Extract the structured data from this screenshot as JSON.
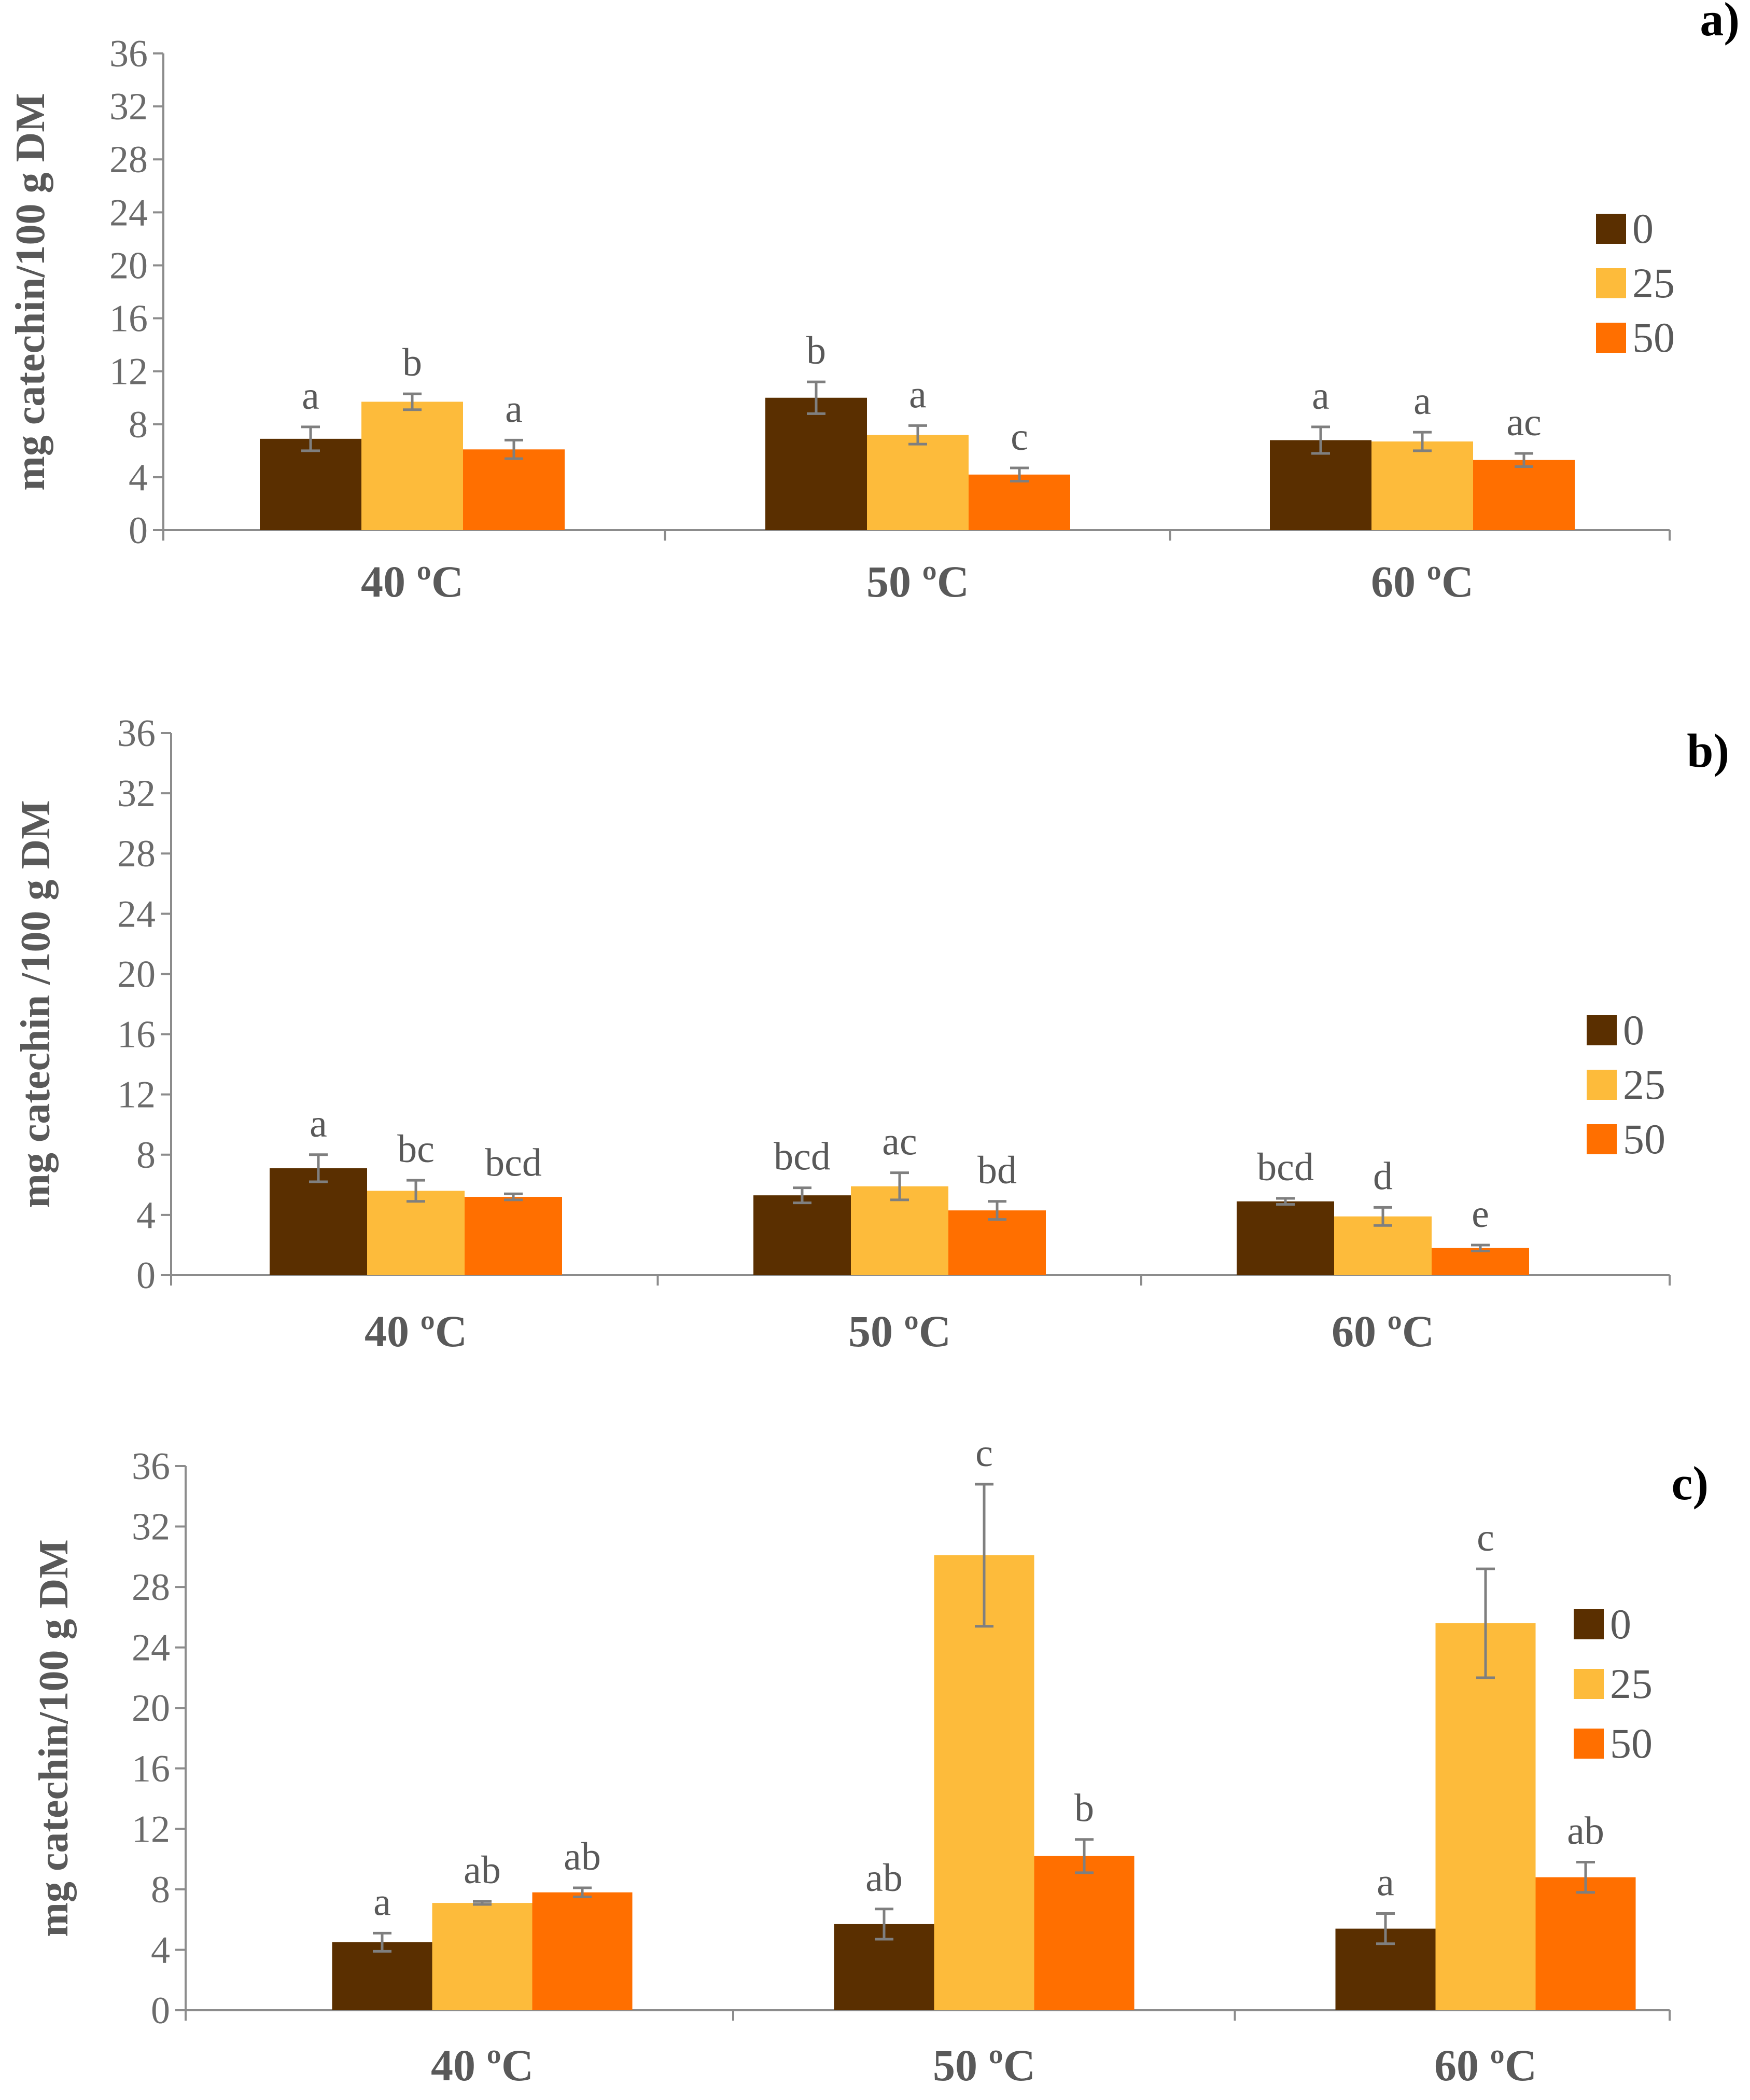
{
  "chart_data": [
    {
      "type": "bar",
      "panel_label": "a)",
      "ylabel": "mg catechin/100 g DM",
      "categories": [
        "40 ºC",
        "50 ºC",
        "60 ºC"
      ],
      "ylim": [
        0,
        36
      ],
      "yticks": [
        0,
        4,
        8,
        12,
        16,
        20,
        24,
        28,
        32,
        36
      ],
      "legend_position": "right",
      "series": [
        {
          "name": "0",
          "color": "#5a2f00",
          "values": [
            6.9,
            10.0,
            6.8
          ],
          "errors": [
            0.9,
            1.2,
            1.0
          ],
          "labels": [
            "a",
            "b",
            "a"
          ]
        },
        {
          "name": "25",
          "color": "#fdbb3b",
          "values": [
            9.7,
            7.2,
            6.7
          ],
          "errors": [
            0.6,
            0.7,
            0.7
          ],
          "labels": [
            "b",
            "a",
            "a"
          ]
        },
        {
          "name": "50",
          "color": "#ff6f00",
          "values": [
            6.1,
            4.2,
            5.3
          ],
          "errors": [
            0.7,
            0.5,
            0.5
          ],
          "labels": [
            "a",
            "c",
            "ac"
          ]
        }
      ]
    },
    {
      "type": "bar",
      "panel_label": "b)",
      "ylabel": "mg catechin /100 g DM",
      "categories": [
        "40 ºC",
        "50 ºC",
        "60 ºC"
      ],
      "ylim": [
        0,
        36
      ],
      "yticks": [
        0,
        4,
        8,
        12,
        16,
        20,
        24,
        28,
        32,
        36
      ],
      "legend_position": "right",
      "series": [
        {
          "name": "0",
          "color": "#5a2f00",
          "values": [
            7.1,
            5.3,
            4.9
          ],
          "errors": [
            0.9,
            0.5,
            0.2
          ],
          "labels": [
            "a",
            "bcd",
            "bcd"
          ]
        },
        {
          "name": "25",
          "color": "#fdbb3b",
          "values": [
            5.6,
            5.9,
            3.9
          ],
          "errors": [
            0.7,
            0.9,
            0.6
          ],
          "labels": [
            "bc",
            "ac",
            "d"
          ]
        },
        {
          "name": "50",
          "color": "#ff6f00",
          "values": [
            5.2,
            4.3,
            1.8
          ],
          "errors": [
            0.2,
            0.6,
            0.2
          ],
          "labels": [
            "bcd",
            "bd",
            "e"
          ]
        }
      ]
    },
    {
      "type": "bar",
      "panel_label": "c)",
      "ylabel": "mg catechin/100 g DM",
      "categories": [
        "40 ºC",
        "50 ºC",
        "60 ºC"
      ],
      "ylim": [
        0,
        36
      ],
      "yticks": [
        0,
        4,
        8,
        12,
        16,
        20,
        24,
        28,
        32,
        36
      ],
      "legend_position": "right",
      "series": [
        {
          "name": "0",
          "color": "#5a2f00",
          "values": [
            4.5,
            5.7,
            5.4
          ],
          "errors": [
            0.6,
            1.0,
            1.0
          ],
          "labels": [
            "a",
            "ab",
            "a"
          ]
        },
        {
          "name": "25",
          "color": "#fdbb3b",
          "values": [
            7.1,
            30.1,
            25.6
          ],
          "errors": [
            0.1,
            4.7,
            3.6
          ],
          "labels": [
            "ab",
            "c",
            "c"
          ]
        },
        {
          "name": "50",
          "color": "#ff6f00",
          "values": [
            7.8,
            10.2,
            8.8
          ],
          "errors": [
            0.3,
            1.1,
            1.0
          ],
          "labels": [
            "ab",
            "b",
            "ab"
          ]
        }
      ]
    }
  ]
}
